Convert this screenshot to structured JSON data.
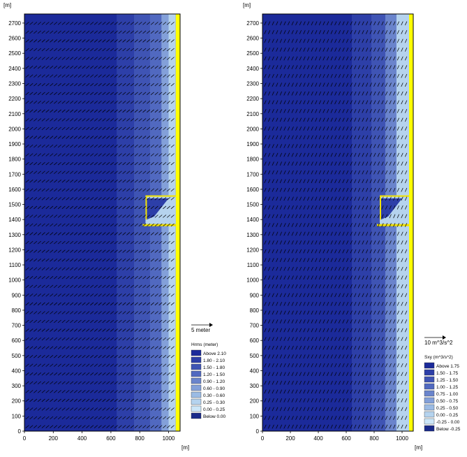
{
  "chart_data": [
    {
      "type": "heatmap",
      "id": "hrms",
      "y_unit": "[m]",
      "x_unit": "[m]",
      "xlim": [
        0,
        1080
      ],
      "ylim": [
        0,
        2760
      ],
      "x_ticks": [
        0,
        200,
        400,
        600,
        800,
        1000
      ],
      "y_ticks": [
        0,
        100,
        200,
        300,
        400,
        500,
        600,
        700,
        800,
        900,
        1000,
        1100,
        1200,
        1300,
        1400,
        1500,
        1600,
        1700,
        1800,
        1900,
        2000,
        2100,
        2200,
        2300,
        2400,
        2500,
        2600,
        2700
      ],
      "bands": [
        {
          "x_start": 0,
          "x_end": 640,
          "class": 0
        },
        {
          "x_start": 640,
          "x_end": 760,
          "class": 1
        },
        {
          "x_start": 760,
          "x_end": 870,
          "class": 2
        },
        {
          "x_start": 870,
          "x_end": 950,
          "class": 3
        },
        {
          "x_start": 950,
          "x_end": 1000,
          "class": 5
        },
        {
          "x_start": 1000,
          "x_end": 1050,
          "class": 7
        }
      ],
      "vector_scale_label": "5 meter",
      "vector_angle_deg": 40,
      "legend": {
        "title": "Hrms (meter)",
        "entries": [
          "Above 2.10",
          "1.80 - 2.10",
          "1.50 - 1.80",
          "1.20 - 1.50",
          "0.90 - 1.20",
          "0.60 - 0.90",
          "0.30 - 0.60",
          "0.25 - 0.30",
          "0.00 - 0.25",
          "Below 0.00"
        ],
        "colors": [
          "#1b2a9a",
          "#2d3fa8",
          "#3f54b4",
          "#5169c0",
          "#6a84cc",
          "#83a0d9",
          "#9bbbe4",
          "#b5d3ee",
          "#cce6f8",
          "#1a2a8a"
        ]
      }
    },
    {
      "type": "heatmap",
      "id": "sxy",
      "y_unit": "[m]",
      "x_unit": "[m]",
      "xlim": [
        0,
        1080
      ],
      "ylim": [
        0,
        2760
      ],
      "x_ticks": [
        0,
        200,
        400,
        600,
        800,
        1000
      ],
      "y_ticks": [
        0,
        100,
        200,
        300,
        400,
        500,
        600,
        700,
        800,
        900,
        1000,
        1100,
        1200,
        1300,
        1400,
        1500,
        1600,
        1700,
        1800,
        1900,
        2000,
        2100,
        2200,
        2300,
        2400,
        2500,
        2600,
        2700
      ],
      "bands": [
        {
          "x_start": 0,
          "x_end": 640,
          "class": 0
        },
        {
          "x_start": 640,
          "x_end": 780,
          "class": 1
        },
        {
          "x_start": 780,
          "x_end": 880,
          "class": 2
        },
        {
          "x_start": 880,
          "x_end": 960,
          "class": 4
        },
        {
          "x_start": 960,
          "x_end": 1050,
          "class": 7
        }
      ],
      "vector_scale_label": "10 m^3/s^2",
      "vector_angle_deg": 65,
      "legend": {
        "title": "Sxy (m^3/s^2)",
        "entries": [
          "Above 1.75",
          "1.50 - 1.75",
          "1.25 - 1.50",
          "1.00 - 1.25",
          "0.75 - 1.00",
          "0.50 - 0.75",
          "0.25 - 0.50",
          "0.00 - 0.25",
          "-0.25 - 0.00",
          "Below -0.25"
        ],
        "colors": [
          "#1b2a9a",
          "#2d3fa8",
          "#3f54b4",
          "#5169c0",
          "#6a84cc",
          "#83a0d9",
          "#9bbbe4",
          "#b5d3ee",
          "#cce6f8",
          "#1a2a8a"
        ]
      }
    }
  ],
  "colors": {
    "shore": "#ffff00",
    "structure": "#f0e000",
    "arrow": "#000000",
    "deep": "#2a3b9c"
  }
}
